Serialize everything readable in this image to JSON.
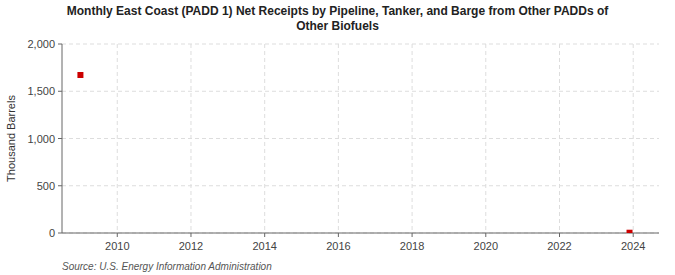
{
  "chart_data": {
    "type": "scatter",
    "title": [
      "Monthly East Coast (PADD 1) Net Receipts by Pipeline, Tanker, and Barge from Other PADDs of",
      "Other Biofuels"
    ],
    "ylabel": "Thousand Barrels",
    "source": "Source: U.S. Energy Information Administration",
    "x": [
      2009.0,
      2023.9
    ],
    "values": [
      1672,
      3
    ],
    "color": "#cc0000",
    "marker": "square",
    "xlim": [
      2008.5,
      2024.7
    ],
    "ylim": [
      0,
      2000
    ],
    "xticks": [
      2010,
      2012,
      2014,
      2016,
      2018,
      2020,
      2022,
      2024
    ],
    "yticks": [
      0,
      500,
      {
        "value": 1000,
        "label": "1,000"
      },
      {
        "value": 1500,
        "label": "1,500"
      },
      {
        "value": 2000,
        "label": "2,000"
      }
    ],
    "grid": true
  }
}
